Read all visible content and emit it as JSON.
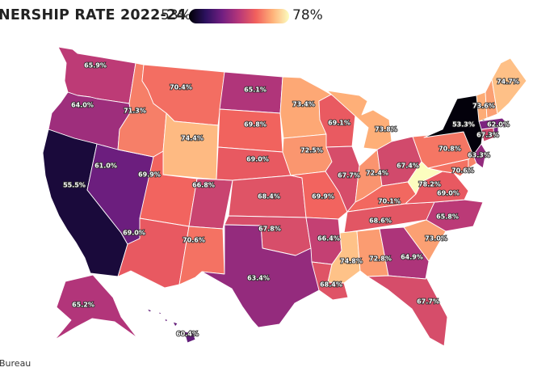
{
  "title": "NERSHIP RATE 2022-24",
  "legend": {
    "min_label": "53%",
    "max_label": "78%",
    "min": 53,
    "max": 78
  },
  "source": "Bureau",
  "colors": [
    "#000004",
    "#2c115f",
    "#721f81",
    "#b73779",
    "#f1605d",
    "#feb078",
    "#fcfdbf"
  ],
  "states": [
    {
      "id": "WA",
      "label": "65.9%",
      "value": 65.9
    },
    {
      "id": "OR",
      "label": "64.0%",
      "value": 64.0
    },
    {
      "id": "CA",
      "label": "55.5%",
      "value": 55.5
    },
    {
      "id": "NV",
      "label": "61.0%",
      "value": 61.0
    },
    {
      "id": "ID",
      "label": "71.3%",
      "value": 71.3
    },
    {
      "id": "MT",
      "label": "70.4%",
      "value": 70.4
    },
    {
      "id": "WY",
      "label": "74.4%",
      "value": 74.4
    },
    {
      "id": "UT",
      "label": "69.9%",
      "value": 69.9
    },
    {
      "id": "AZ",
      "label": "69.0%",
      "value": 69.0
    },
    {
      "id": "CO",
      "label": "66.8%",
      "value": 66.8
    },
    {
      "id": "NM",
      "label": "70.6%",
      "value": 70.6
    },
    {
      "id": "ND",
      "label": "65.1%",
      "value": 65.1
    },
    {
      "id": "SD",
      "label": "69.8%",
      "value": 69.8
    },
    {
      "id": "NE",
      "label": "69.0%",
      "value": 69.0
    },
    {
      "id": "KS",
      "label": "68.4%",
      "value": 68.4
    },
    {
      "id": "OK",
      "label": "67.8%",
      "value": 67.8
    },
    {
      "id": "TX",
      "label": "63.4%",
      "value": 63.4
    },
    {
      "id": "MN",
      "label": "73.4%",
      "value": 73.4
    },
    {
      "id": "IA",
      "label": "72.5%",
      "value": 72.5
    },
    {
      "id": "MO",
      "label": "69.9%",
      "value": 69.9
    },
    {
      "id": "AR",
      "label": "66.4%",
      "value": 66.4
    },
    {
      "id": "LA",
      "label": "68.4%",
      "value": 68.4
    },
    {
      "id": "WI",
      "label": "69.1%",
      "value": 69.1
    },
    {
      "id": "IL",
      "label": "67.7%",
      "value": 67.7
    },
    {
      "id": "MI",
      "label": "73.8%",
      "value": 73.8
    },
    {
      "id": "IN",
      "label": "72.4%",
      "value": 72.4
    },
    {
      "id": "OH",
      "label": "67.4%",
      "value": 67.4
    },
    {
      "id": "KY",
      "label": "70.1%",
      "value": 70.1
    },
    {
      "id": "TN",
      "label": "68.6%",
      "value": 68.6
    },
    {
      "id": "MS",
      "label": "74.8%",
      "value": 74.8
    },
    {
      "id": "AL",
      "label": "72.8%",
      "value": 72.8
    },
    {
      "id": "GA",
      "label": "64.9%",
      "value": 64.9
    },
    {
      "id": "FL",
      "label": "67.7%",
      "value": 67.7
    },
    {
      "id": "SC",
      "label": "73.0%",
      "value": 73.0
    },
    {
      "id": "NC",
      "label": "65.8%",
      "value": 65.8
    },
    {
      "id": "VA",
      "label": "69.0%",
      "value": 69.0
    },
    {
      "id": "WV",
      "label": "78.2%",
      "value": 78.2
    },
    {
      "id": "PA",
      "label": "70.8%",
      "value": 70.8
    },
    {
      "id": "NY",
      "label": "53.3%",
      "value": 53.3
    },
    {
      "id": "MD",
      "label": "70.6%",
      "value": 70.6
    },
    {
      "id": "DE",
      "label": "",
      "value": 71.5
    },
    {
      "id": "NJ",
      "label": "63.3%",
      "value": 63.3
    },
    {
      "id": "CT",
      "label": "67.3%",
      "value": 67.3
    },
    {
      "id": "RI",
      "label": "",
      "value": 62.0
    },
    {
      "id": "MA",
      "label": "62.0%",
      "value": 62.0
    },
    {
      "id": "VT",
      "label": "73.6%",
      "value": 73.6
    },
    {
      "id": "NH",
      "label": "",
      "value": 73.0
    },
    {
      "id": "ME",
      "label": "74.7%",
      "value": 74.7
    },
    {
      "id": "AK",
      "label": "65.2%",
      "value": 65.2
    },
    {
      "id": "HI",
      "label": "60.4%",
      "value": 60.4
    }
  ]
}
